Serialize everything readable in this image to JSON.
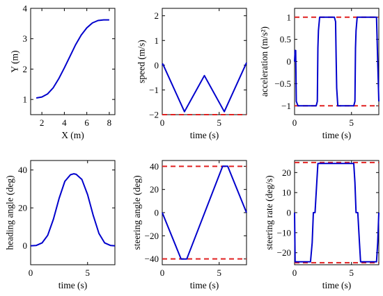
{
  "colors": {
    "line": "#0000cc",
    "limit": "#e02020",
    "axis": "#000000"
  },
  "chart_data": [
    {
      "type": "line",
      "xlabel": "X (m)",
      "ylabel": "Y (m)",
      "xlim": [
        1,
        8.5
      ],
      "ylim": [
        0.5,
        4
      ],
      "xticks": [
        2,
        4,
        6,
        8
      ],
      "yticks": [
        1,
        2,
        3,
        4
      ],
      "xticklabels": [
        "2",
        "4",
        "6",
        "8"
      ],
      "yticklabels": [
        "1",
        "2",
        "3",
        "4"
      ],
      "series": [
        {
          "x": [
            1.5,
            2.0,
            2.5,
            3.0,
            3.5,
            4.0,
            4.5,
            5.0,
            5.5,
            6.0,
            6.5,
            7.0,
            7.5,
            8.0
          ],
          "y": [
            1.05,
            1.08,
            1.18,
            1.38,
            1.68,
            2.04,
            2.42,
            2.8,
            3.12,
            3.36,
            3.52,
            3.6,
            3.62,
            3.62
          ]
        }
      ],
      "limits": []
    },
    {
      "type": "line",
      "xlabel": "time (s)",
      "ylabel": "speed (m/s)",
      "xlim": [
        0,
        7.4
      ],
      "ylim": [
        -2,
        2.3
      ],
      "xticks": [
        0,
        5
      ],
      "yticks": [
        -2,
        -1,
        0,
        1,
        2
      ],
      "xticklabels": [
        "0",
        "5"
      ],
      "yticklabels": [
        "−2",
        "−1",
        "0",
        "1",
        "2"
      ],
      "series": [
        {
          "x": [
            0,
            0.05,
            1.95,
            3.7,
            5.45,
            7.4
          ],
          "y": [
            0,
            0.05,
            -1.88,
            -0.42,
            -1.88,
            0.1
          ]
        }
      ],
      "limits": [
        -2
      ]
    },
    {
      "type": "line",
      "xlabel": "time (s)",
      "ylabel": "acceleration (m/s²)",
      "xlim": [
        0,
        7.4
      ],
      "ylim": [
        -1.2,
        1.2
      ],
      "xticks": [
        0,
        5
      ],
      "yticks": [
        -1,
        -0.5,
        0,
        0.5,
        1
      ],
      "xticklabels": [
        "0",
        "5"
      ],
      "yticklabels": [
        "−1",
        "−0.5",
        "0",
        "0.5",
        "1"
      ],
      "series": [
        {
          "x": [
            0,
            0.05,
            0.1,
            0.15,
            0.3,
            0.45,
            0.6,
            1.9,
            2.0,
            2.05,
            2.1,
            2.2,
            2.3,
            3.5,
            3.6,
            3.65,
            3.7,
            3.8,
            3.9,
            5.2,
            5.3,
            5.35,
            5.4,
            5.5,
            5.6,
            7.2,
            7.3,
            7.4
          ],
          "y": [
            0,
            0.25,
            0.25,
            -0.9,
            -1,
            -1,
            -1,
            -1,
            -0.9,
            0.3,
            0.7,
            1,
            1,
            1,
            0.9,
            0.1,
            -0.6,
            -1,
            -1,
            -1,
            -0.9,
            0.3,
            0.7,
            1,
            1,
            1,
            0,
            -0.9
          ]
        }
      ],
      "limits": [
        -1,
        1
      ]
    },
    {
      "type": "line",
      "xlabel": "time (s)",
      "ylabel": "heading angle (deg)",
      "xlim": [
        0,
        7.4
      ],
      "ylim": [
        -10,
        45
      ],
      "xticks": [
        0,
        5
      ],
      "yticks": [
        0,
        20,
        40
      ],
      "xticklabels": [
        "0",
        "5"
      ],
      "yticklabels": [
        "0",
        "20",
        "40"
      ],
      "series": [
        {
          "x": [
            0,
            0.5,
            1.0,
            1.5,
            2.0,
            2.5,
            3.0,
            3.5,
            3.8,
            4.0,
            4.5,
            5.0,
            5.5,
            6.0,
            6.5,
            7.0,
            7.4
          ],
          "y": [
            0,
            0.2,
            1.5,
            5.5,
            14,
            25,
            34,
            37.5,
            38,
            37.7,
            35,
            27,
            16,
            6.5,
            1.5,
            0.2,
            0
          ]
        }
      ],
      "limits": []
    },
    {
      "type": "line",
      "xlabel": "time (s)",
      "ylabel": "steering angle (deg)",
      "xlim": [
        0,
        7.4
      ],
      "ylim": [
        -45,
        45
      ],
      "xticks": [
        0,
        5
      ],
      "yticks": [
        -40,
        -20,
        0,
        20,
        40
      ],
      "xticklabels": [
        "0",
        "5"
      ],
      "yticklabels": [
        "−40",
        "−20",
        "0",
        "20",
        "40"
      ],
      "series": [
        {
          "x": [
            0,
            1.65,
            2.15,
            5.3,
            5.75,
            7.4
          ],
          "y": [
            0,
            -40,
            -40,
            40,
            40,
            0
          ]
        }
      ],
      "limits": [
        -40,
        40
      ]
    },
    {
      "type": "line",
      "xlabel": "time (s)",
      "ylabel": "steering rate (deg/s)",
      "xlim": [
        0,
        7.4
      ],
      "ylim": [
        -26,
        26
      ],
      "xticks": [
        0,
        5
      ],
      "yticks": [
        -20,
        -10,
        0,
        10,
        20
      ],
      "xticklabels": [
        "0",
        "5"
      ],
      "yticklabels": [
        "−20",
        "−10",
        "0",
        "10",
        "20"
      ],
      "series": [
        {
          "x": [
            0,
            0.05,
            0.15,
            1.4,
            1.55,
            1.65,
            1.8,
            1.95,
            2.05,
            2.15,
            5.2,
            5.3,
            5.4,
            5.55,
            5.7,
            5.8,
            7.1,
            7.2,
            7.3,
            7.4
          ],
          "y": [
            0,
            -24.5,
            -24.5,
            -24.5,
            -15,
            0,
            0,
            15,
            24.5,
            24.5,
            24.5,
            15,
            0,
            0,
            -15,
            -24.5,
            -24.5,
            -24.5,
            -15,
            0
          ]
        }
      ],
      "limits": [
        -25,
        25
      ]
    }
  ]
}
